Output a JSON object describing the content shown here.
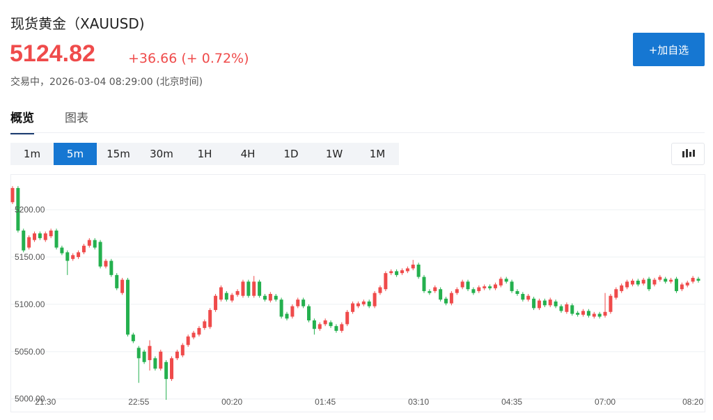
{
  "header": {
    "title": "现货黄金（XAUUSD)",
    "price": "5124.82",
    "change": "+36.66 (+ 0.72%)",
    "status": "交易中，2026-03-04 08:29:00 (北京时间)",
    "button": "+加自选"
  },
  "tabs": [
    "概览",
    "图表"
  ],
  "intervals": [
    "1m",
    "5m",
    "15m",
    "30m",
    "1H",
    "4H",
    "1D",
    "1W",
    "1M"
  ],
  "chart_data": {
    "type": "candlestick",
    "up_color": "#ef4b4b",
    "down_color": "#24b04e",
    "grid": true,
    "ylim": [
      4988,
      5234
    ],
    "yticks": [
      {
        "value": 5000,
        "label": "5000.00"
      },
      {
        "value": 5050,
        "label": "5050.00"
      },
      {
        "value": 5100,
        "label": "5100.00"
      },
      {
        "value": 5150,
        "label": "5150.00"
      },
      {
        "value": 5200,
        "label": "5200.00"
      }
    ],
    "categories": [
      null,
      null,
      null,
      null,
      null,
      null,
      "21:30",
      null,
      null,
      null,
      null,
      null,
      null,
      null,
      null,
      null,
      null,
      null,
      null,
      null,
      null,
      null,
      null,
      "22:55",
      null,
      null,
      null,
      null,
      null,
      null,
      null,
      null,
      null,
      null,
      null,
      null,
      null,
      null,
      null,
      null,
      "00:20",
      null,
      null,
      null,
      null,
      null,
      null,
      null,
      null,
      null,
      null,
      null,
      null,
      null,
      null,
      null,
      null,
      "01:45",
      null,
      null,
      null,
      null,
      null,
      null,
      null,
      null,
      null,
      null,
      null,
      null,
      null,
      null,
      null,
      null,
      "03:10",
      null,
      null,
      null,
      null,
      null,
      null,
      null,
      null,
      null,
      null,
      null,
      null,
      null,
      null,
      null,
      null,
      "04:35",
      null,
      null,
      null,
      null,
      null,
      null,
      null,
      null,
      null,
      null,
      null,
      null,
      null,
      null,
      null,
      null,
      "07:00",
      null,
      null,
      null,
      null,
      null,
      null,
      null,
      null,
      null,
      null,
      null,
      null,
      null,
      null,
      null,
      "08:20",
      null
    ],
    "open": [
      5208,
      5223,
      5178,
      5160,
      5168,
      5175,
      5168,
      5172,
      5178,
      5160,
      5155,
      5148,
      5150,
      5155,
      5162,
      5168,
      5166,
      5140,
      5146,
      5131,
      5112,
      5126,
      5068,
      5054,
      5050,
      5041,
      5043,
      5032,
      5039,
      5021,
      5043,
      5046,
      5057,
      5065,
      5068,
      5075,
      5076,
      5094,
      5105,
      5112,
      5104,
      5110,
      5109,
      5124,
      5109,
      5124,
      5109,
      5104,
      5109,
      5105,
      5090,
      5087,
      5098,
      5105,
      5098,
      5083,
      5074,
      5079,
      5081,
      5077,
      5072,
      5079,
      5092,
      5098,
      5100,
      5103,
      5098,
      5112,
      5116,
      5133,
      5135,
      5133,
      5135,
      5138,
      5142,
      5129,
      5114,
      5114,
      5116,
      5106,
      5101,
      5112,
      5118,
      5124,
      5116,
      5114,
      5117,
      5119,
      5117,
      5120,
      5127,
      5124,
      5114,
      5111,
      5105,
      5106,
      5096,
      5104,
      5099,
      5103,
      5098,
      5092,
      5099,
      5091,
      5089,
      5093,
      5087,
      5090,
      5088,
      5092,
      5107,
      5114,
      5118,
      5121,
      5125,
      5122,
      5127,
      5121,
      5126,
      5127,
      5124,
      5127,
      5116,
      5120,
      5124,
      5127
    ],
    "high": [
      5225,
      5225,
      5180,
      5173,
      5177,
      5177,
      5177,
      5180,
      5180,
      5162,
      5157,
      5154,
      5157,
      5164,
      5170,
      5170,
      5168,
      5148,
      5148,
      5133,
      5128,
      5128,
      5070,
      5056,
      5052,
      5062,
      5045,
      5052,
      5041,
      5045,
      5052,
      5059,
      5068,
      5072,
      5077,
      5084,
      5096,
      5111,
      5120,
      5114,
      5112,
      5116,
      5126,
      5126,
      5130,
      5126,
      5111,
      5113,
      5111,
      5107,
      5092,
      5100,
      5107,
      5107,
      5100,
      5085,
      5081,
      5085,
      5083,
      5079,
      5081,
      5094,
      5103,
      5103,
      5105,
      5105,
      5114,
      5120,
      5135,
      5137,
      5137,
      5138,
      5140,
      5147,
      5144,
      5131,
      5116,
      5120,
      5118,
      5108,
      5114,
      5118,
      5126,
      5126,
      5118,
      5120,
      5121,
      5121,
      5123,
      5129,
      5129,
      5126,
      5116,
      5113,
      5111,
      5108,
      5106,
      5106,
      5107,
      5105,
      5100,
      5102,
      5101,
      5093,
      5095,
      5095,
      5092,
      5092,
      5112,
      5111,
      5118,
      5122,
      5126,
      5127,
      5127,
      5128,
      5129,
      5128,
      5131,
      5129,
      5128,
      5129,
      5123,
      5125,
      5130,
      5129
    ],
    "low": [
      5206,
      5176,
      5155,
      5158,
      5166,
      5168,
      5166,
      5170,
      5158,
      5152,
      5131,
      5146,
      5148,
      5153,
      5160,
      5158,
      5138,
      5138,
      5129,
      5115,
      5110,
      5066,
      5059,
      5017,
      5037,
      5030,
      5030,
      5030,
      4999,
      5019,
      5041,
      5044,
      5055,
      5063,
      5066,
      5073,
      5074,
      5092,
      5103,
      5103,
      5102,
      5108,
      5107,
      5107,
      5107,
      5107,
      5103,
      5102,
      5103,
      5085,
      5083,
      5085,
      5096,
      5096,
      5081,
      5068,
      5072,
      5077,
      5075,
      5070,
      5070,
      5077,
      5090,
      5096,
      5098,
      5096,
      5096,
      5110,
      5114,
      5131,
      5129,
      5131,
      5133,
      5136,
      5127,
      5112,
      5110,
      5112,
      5103,
      5099,
      5099,
      5110,
      5116,
      5114,
      5110,
      5112,
      5115,
      5115,
      5115,
      5118,
      5122,
      5112,
      5109,
      5103,
      5103,
      5094,
      5094,
      5097,
      5097,
      5096,
      5091,
      5090,
      5088,
      5087,
      5087,
      5086,
      5085,
      5085,
      5086,
      5090,
      5105,
      5112,
      5116,
      5119,
      5119,
      5120,
      5114,
      5119,
      5124,
      5122,
      5122,
      5112,
      5114,
      5118,
      5122,
      5123
    ],
    "close": [
      5223,
      5178,
      5157,
      5171,
      5175,
      5170,
      5175,
      5178,
      5160,
      5154,
      5146,
      5152,
      5155,
      5162,
      5168,
      5160,
      5140,
      5146,
      5131,
      5117,
      5126,
      5068,
      5061,
      5043,
      5039,
      5056,
      5032,
      5050,
      5021,
      5043,
      5050,
      5057,
      5066,
      5070,
      5075,
      5082,
      5094,
      5109,
      5118,
      5105,
      5110,
      5114,
      5124,
      5109,
      5124,
      5109,
      5105,
      5111,
      5105,
      5087,
      5085,
      5098,
      5105,
      5098,
      5083,
      5074,
      5079,
      5083,
      5077,
      5072,
      5079,
      5092,
      5101,
      5101,
      5103,
      5098,
      5112,
      5118,
      5133,
      5135,
      5131,
      5136,
      5138,
      5142,
      5129,
      5114,
      5112,
      5118,
      5105,
      5101,
      5112,
      5116,
      5124,
      5116,
      5112,
      5118,
      5119,
      5117,
      5121,
      5127,
      5124,
      5114,
      5111,
      5105,
      5109,
      5096,
      5104,
      5099,
      5105,
      5098,
      5093,
      5100,
      5090,
      5089,
      5093,
      5088,
      5090,
      5087,
      5092,
      5109,
      5116,
      5120,
      5124,
      5125,
      5121,
      5126,
      5116,
      5126,
      5129,
      5124,
      5126,
      5114,
      5121,
      5123,
      5128,
      5125
    ]
  }
}
